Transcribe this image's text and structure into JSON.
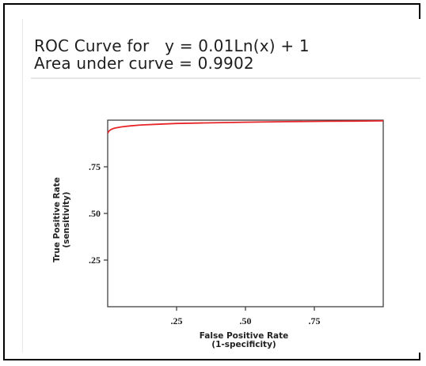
{
  "title_line1": "ROC Curve for   y = 0.01Ln(x) + 1",
  "title_line2": "Area under curve = 0.9902",
  "chart_data": {
    "type": "line",
    "xlabel": "False Positive Rate",
    "xlabel_sub": "(1-specificity)",
    "ylabel": "True Positive Rate",
    "ylabel_sub": "(sensitivity)",
    "xlim": [
      0,
      1
    ],
    "ylim": [
      0,
      1
    ],
    "x_ticks": [
      0.25,
      0.5,
      0.75
    ],
    "x_tick_labels": [
      ".25",
      ".50",
      ".75"
    ],
    "y_ticks": [
      0.25,
      0.5,
      0.75
    ],
    "y_tick_labels": [
      ".25",
      ".50",
      ".75"
    ],
    "grid": false,
    "series": [
      {
        "color": "#e8262a",
        "x": [
          0.0,
          0.005,
          0.01,
          0.02,
          0.03,
          0.05,
          0.08,
          0.12,
          0.18,
          0.25,
          0.35,
          0.5,
          0.65,
          0.8,
          0.9,
          1.0
        ],
        "y": [
          0.93,
          0.942,
          0.948,
          0.955,
          0.959,
          0.964,
          0.969,
          0.974,
          0.978,
          0.982,
          0.985,
          0.989,
          0.992,
          0.994,
          0.995,
          0.996
        ]
      }
    ]
  }
}
